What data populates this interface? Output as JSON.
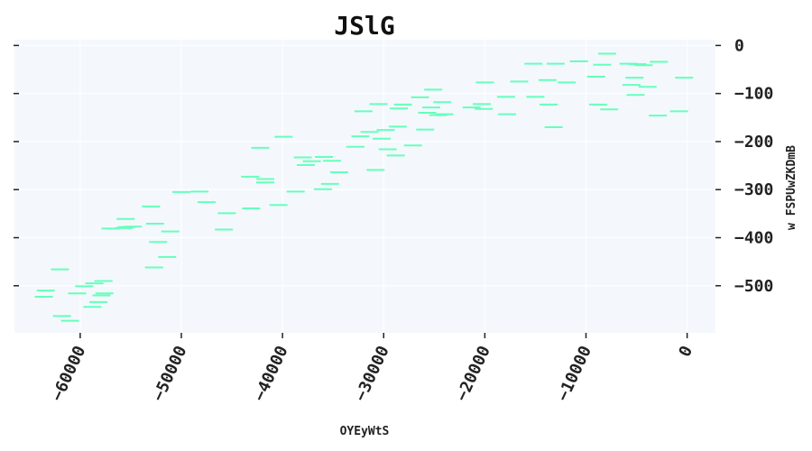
{
  "chart_data": {
    "type": "scatter",
    "marker": "hline",
    "title": "JSlG",
    "xlabel": "OYEyWtS",
    "ylabel": "w FSPUwZKDmB",
    "xlim": [
      -66500,
      2800
    ],
    "ylim": [
      -598,
      12
    ],
    "xticks": [
      -60000,
      -50000,
      -40000,
      -30000,
      -20000,
      -10000,
      0
    ],
    "xtick_labels": [
      "−60000",
      "−50000",
      "−40000",
      "−30000",
      "−20000",
      "−10000",
      "0"
    ],
    "yticks": [
      0,
      -100,
      -200,
      -300,
      -400,
      -500
    ],
    "ytick_labels": [
      "0",
      "−100",
      "−200",
      "−300",
      "−400",
      "−500"
    ],
    "grid": true,
    "y_axis_side": "right",
    "colors": {
      "marker": "#66ffbb",
      "plot_bg": "#f4f8fd",
      "grid": "#ffffff"
    },
    "points": [
      {
        "x": -63400,
        "y": -510
      },
      {
        "x": -63600,
        "y": -523
      },
      {
        "x": -62000,
        "y": -466
      },
      {
        "x": -61800,
        "y": -563
      },
      {
        "x": -61000,
        "y": -573
      },
      {
        "x": -60300,
        "y": -516
      },
      {
        "x": -59600,
        "y": -501
      },
      {
        "x": -58800,
        "y": -544
      },
      {
        "x": -58600,
        "y": -495
      },
      {
        "x": -58200,
        "y": -534
      },
      {
        "x": -57900,
        "y": -520
      },
      {
        "x": -57600,
        "y": -516
      },
      {
        "x": -57700,
        "y": -490
      },
      {
        "x": -57000,
        "y": -381
      },
      {
        "x": -55700,
        "y": -380
      },
      {
        "x": -55500,
        "y": -361
      },
      {
        "x": -55400,
        "y": -378
      },
      {
        "x": -54800,
        "y": -377
      },
      {
        "x": -53000,
        "y": -335
      },
      {
        "x": -52600,
        "y": -371
      },
      {
        "x": -52700,
        "y": -462
      },
      {
        "x": -52300,
        "y": -409
      },
      {
        "x": -51400,
        "y": -440
      },
      {
        "x": -51100,
        "y": -387
      },
      {
        "x": -50000,
        "y": -305
      },
      {
        "x": -48200,
        "y": -304
      },
      {
        "x": -47500,
        "y": -326
      },
      {
        "x": -45800,
        "y": -383
      },
      {
        "x": -45500,
        "y": -349
      },
      {
        "x": -43200,
        "y": -273
      },
      {
        "x": -43100,
        "y": -339
      },
      {
        "x": -42200,
        "y": -213
      },
      {
        "x": -41700,
        "y": -278
      },
      {
        "x": -41700,
        "y": -285
      },
      {
        "x": -40400,
        "y": -332
      },
      {
        "x": -39900,
        "y": -190
      },
      {
        "x": -38700,
        "y": -304
      },
      {
        "x": -38000,
        "y": -233
      },
      {
        "x": -37700,
        "y": -249
      },
      {
        "x": -37100,
        "y": -241
      },
      {
        "x": -36000,
        "y": -299
      },
      {
        "x": -35900,
        "y": -232
      },
      {
        "x": -35300,
        "y": -288
      },
      {
        "x": -35100,
        "y": -240
      },
      {
        "x": -34400,
        "y": -264
      },
      {
        "x": -32800,
        "y": -211
      },
      {
        "x": -32300,
        "y": -189
      },
      {
        "x": -32000,
        "y": -137
      },
      {
        "x": -31400,
        "y": -180
      },
      {
        "x": -30800,
        "y": -259
      },
      {
        "x": -30500,
        "y": -122
      },
      {
        "x": -30200,
        "y": -194
      },
      {
        "x": -29800,
        "y": -176
      },
      {
        "x": -29600,
        "y": -216
      },
      {
        "x": -28800,
        "y": -229
      },
      {
        "x": -28600,
        "y": -169
      },
      {
        "x": -28500,
        "y": -131
      },
      {
        "x": -28100,
        "y": -123
      },
      {
        "x": -27100,
        "y": -208
      },
      {
        "x": -26400,
        "y": -108
      },
      {
        "x": -25900,
        "y": -175
      },
      {
        "x": -25700,
        "y": -140
      },
      {
        "x": -25300,
        "y": -129
      },
      {
        "x": -25100,
        "y": -92
      },
      {
        "x": -24600,
        "y": -145
      },
      {
        "x": -24200,
        "y": -118
      },
      {
        "x": -24000,
        "y": -143
      },
      {
        "x": -21300,
        "y": -129
      },
      {
        "x": -20300,
        "y": -122
      },
      {
        "x": -20100,
        "y": -132
      },
      {
        "x": -20000,
        "y": -77
      },
      {
        "x": -17900,
        "y": -107
      },
      {
        "x": -17800,
        "y": -143
      },
      {
        "x": -16600,
        "y": -75
      },
      {
        "x": -15200,
        "y": -38
      },
      {
        "x": -15000,
        "y": -107
      },
      {
        "x": -13800,
        "y": -72
      },
      {
        "x": -13700,
        "y": -123
      },
      {
        "x": -13200,
        "y": -170
      },
      {
        "x": -13000,
        "y": -38
      },
      {
        "x": -11900,
        "y": -77
      },
      {
        "x": -10700,
        "y": -33
      },
      {
        "x": -9000,
        "y": -65
      },
      {
        "x": -8800,
        "y": -123
      },
      {
        "x": -8400,
        "y": -40
      },
      {
        "x": -7900,
        "y": -17
      },
      {
        "x": -7700,
        "y": -133
      },
      {
        "x": -5800,
        "y": -38
      },
      {
        "x": -5500,
        "y": -82
      },
      {
        "x": -5200,
        "y": -67
      },
      {
        "x": -5100,
        "y": -103
      },
      {
        "x": -4900,
        "y": -39
      },
      {
        "x": -4300,
        "y": -41
      },
      {
        "x": -3900,
        "y": -86
      },
      {
        "x": -2900,
        "y": -146
      },
      {
        "x": -2800,
        "y": -34
      },
      {
        "x": -800,
        "y": -137
      },
      {
        "x": -300,
        "y": -67
      }
    ]
  }
}
